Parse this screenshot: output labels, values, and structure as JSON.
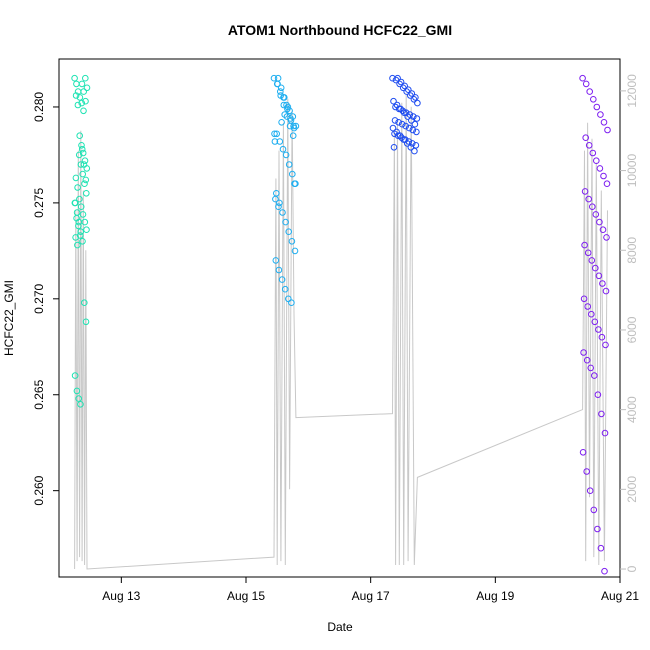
{
  "chart_data": {
    "type": "scatter",
    "title": "ATOM1 Northbound HCFC22_GMI",
    "xlabel": "Date",
    "ylabel": "HCFC22_GMI",
    "x_ticks": [
      "Aug 13",
      "Aug 15",
      "Aug 17",
      "Aug 19",
      "Aug 21"
    ],
    "x_tick_days": [
      13,
      15,
      17,
      19,
      21
    ],
    "xlim_days": [
      12.0,
      21.0
    ],
    "y_ticks": [
      "0.260",
      "0.265",
      "0.270",
      "0.275",
      "0.280"
    ],
    "ylim": [
      0.2555,
      0.2825
    ],
    "y2_ticks": [
      "0",
      "2000",
      "4000",
      "6000",
      "8000",
      "10000",
      "12000"
    ],
    "y2lim": [
      -200,
      12800
    ],
    "y2_color": "#bebebe",
    "grid": false,
    "series": [
      {
        "color": "#1ee3b3",
        "x_range_days": [
          12.25,
          12.45
        ],
        "y": [
          0.2815,
          0.2812,
          0.2808,
          0.2805,
          0.2802,
          0.2798,
          0.2815,
          0.281,
          0.2806,
          0.2801,
          0.2785,
          0.278,
          0.2776,
          0.2772,
          0.2768,
          0.2763,
          0.2758,
          0.2752,
          0.2748,
          0.2744,
          0.274,
          0.2736,
          0.2732,
          0.2728,
          0.2775,
          0.277,
          0.2765,
          0.276,
          0.2755,
          0.275,
          0.2745,
          0.274,
          0.2735,
          0.273,
          0.2698,
          0.2688,
          0.266,
          0.2652,
          0.2648,
          0.2645,
          0.2778,
          0.277,
          0.2762,
          0.275,
          0.2742,
          0.2738,
          0.2733,
          0.2812,
          0.2808,
          0.2803
        ]
      },
      {
        "color": "#1eaef0",
        "x_range_days": [
          15.45,
          15.8
        ],
        "y": [
          0.2815,
          0.2812,
          0.2808,
          0.2805,
          0.2801,
          0.2798,
          0.2795,
          0.279,
          0.2786,
          0.2782,
          0.2778,
          0.2775,
          0.277,
          0.2765,
          0.276,
          0.2755,
          0.275,
          0.2745,
          0.274,
          0.2735,
          0.273,
          0.2725,
          0.272,
          0.2715,
          0.271,
          0.2705,
          0.27,
          0.2698,
          0.276,
          0.2752,
          0.2748,
          0.2792,
          0.2796,
          0.28,
          0.2793,
          0.2789,
          0.2782,
          0.2815,
          0.281,
          0.2805,
          0.2799,
          0.2794,
          0.279,
          0.2786,
          0.2812,
          0.2806,
          0.2801,
          0.2795,
          0.279,
          0.2785
        ]
      },
      {
        "color": "#1e4cf0",
        "x_range_days": [
          17.35,
          17.75
        ],
        "y": [
          0.2815,
          0.2814,
          0.2812,
          0.281,
          0.2808,
          0.2806,
          0.2804,
          0.2802,
          0.28,
          0.2799,
          0.2798,
          0.2797,
          0.2796,
          0.2795,
          0.2794,
          0.2793,
          0.2792,
          0.2791,
          0.279,
          0.2789,
          0.2788,
          0.2787,
          0.2786,
          0.2785,
          0.2784,
          0.2783,
          0.2782,
          0.2781,
          0.278,
          0.2779,
          0.2815,
          0.2813,
          0.2811,
          0.2809,
          0.2807,
          0.2805,
          0.2803,
          0.2801,
          0.2799,
          0.2797,
          0.2795,
          0.2793,
          0.2791,
          0.2789,
          0.2787,
          0.2785,
          0.2783,
          0.2781,
          0.2779,
          0.2777
        ]
      },
      {
        "color": "#7d1ef0",
        "x_range_days": [
          20.4,
          20.8
        ],
        "y": [
          0.2815,
          0.2812,
          0.2808,
          0.2804,
          0.28,
          0.2796,
          0.2792,
          0.2788,
          0.2784,
          0.278,
          0.2776,
          0.2772,
          0.2768,
          0.2764,
          0.276,
          0.2756,
          0.2752,
          0.2748,
          0.2744,
          0.274,
          0.2736,
          0.2732,
          0.2728,
          0.2724,
          0.272,
          0.2716,
          0.2712,
          0.2708,
          0.2704,
          0.27,
          0.2696,
          0.2692,
          0.2688,
          0.2684,
          0.268,
          0.2676,
          0.2672,
          0.2668,
          0.2664,
          0.266,
          0.265,
          0.264,
          0.263,
          0.262,
          0.261,
          0.26,
          0.259,
          0.258,
          0.257,
          0.2558
        ]
      }
    ],
    "altitude": {
      "color": "#c8c8c8",
      "points": [
        [
          12.25,
          0
        ],
        [
          12.27,
          9000
        ],
        [
          12.29,
          200
        ],
        [
          12.31,
          10500
        ],
        [
          12.33,
          300
        ],
        [
          12.35,
          11000
        ],
        [
          12.37,
          200
        ],
        [
          12.39,
          9500
        ],
        [
          12.41,
          100
        ],
        [
          12.43,
          8000
        ],
        [
          12.45,
          0
        ],
        [
          15.45,
          300
        ],
        [
          15.48,
          9800
        ],
        [
          15.5,
          100
        ],
        [
          15.53,
          10500
        ],
        [
          15.56,
          200
        ],
        [
          15.6,
          11200
        ],
        [
          15.63,
          100
        ],
        [
          15.67,
          11800
        ],
        [
          15.7,
          2000
        ],
        [
          15.74,
          11500
        ],
        [
          15.77,
          6400
        ],
        [
          15.8,
          3800
        ],
        [
          17.35,
          3900
        ],
        [
          17.38,
          11000
        ],
        [
          17.4,
          100
        ],
        [
          17.43,
          11200
        ],
        [
          17.46,
          100
        ],
        [
          17.5,
          11700
        ],
        [
          17.53,
          100
        ],
        [
          17.57,
          11900
        ],
        [
          17.6,
          200
        ],
        [
          17.65,
          11600
        ],
        [
          17.7,
          100
        ],
        [
          17.75,
          2300
        ],
        [
          20.4,
          4000
        ],
        [
          20.43,
          10500
        ],
        [
          20.45,
          200
        ],
        [
          20.48,
          11200
        ],
        [
          20.51,
          1800
        ],
        [
          20.55,
          10800
        ],
        [
          20.58,
          300
        ],
        [
          20.62,
          10200
        ],
        [
          20.66,
          100
        ],
        [
          20.7,
          9500
        ],
        [
          20.75,
          200
        ],
        [
          20.8,
          9000
        ]
      ]
    }
  }
}
